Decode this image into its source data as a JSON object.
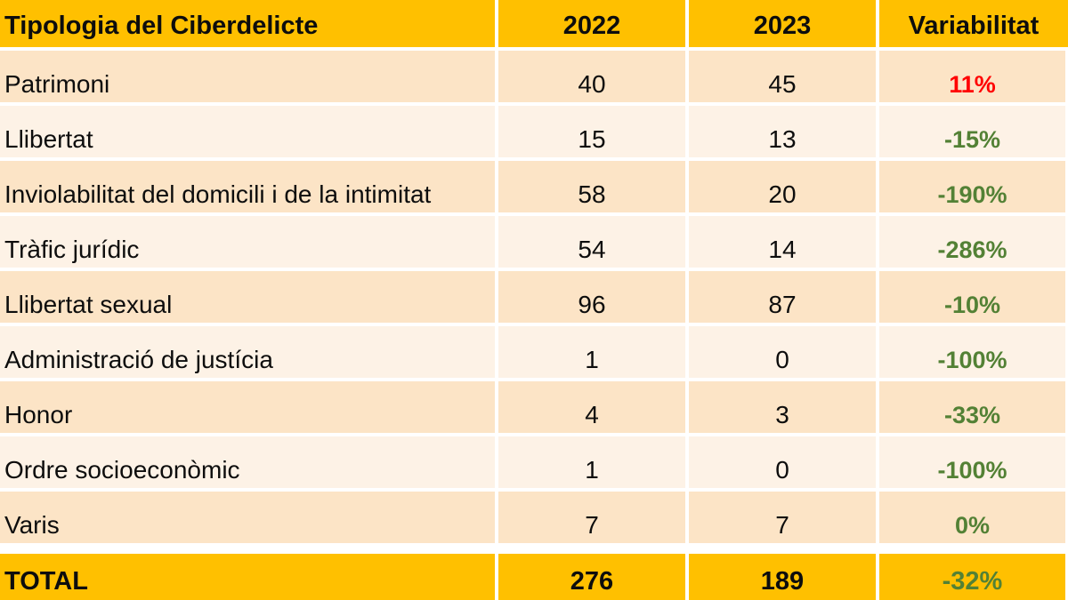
{
  "colors": {
    "header_bg": "#FFC000",
    "row_dark": "#FCE4C6",
    "row_light": "#FDF2E6",
    "positive": "#FF0000",
    "negative": "#538135",
    "text": "#0d0d0d"
  },
  "table": {
    "columns": {
      "typology": "Tipologia del Ciberdelicte",
      "y2022": "2022",
      "y2023": "2023",
      "variability": "Variabilitat"
    },
    "rows": [
      {
        "label": "Patrimoni",
        "y2022": "40",
        "y2023": "45",
        "variability": "11%",
        "trend": "up"
      },
      {
        "label": "Llibertat",
        "y2022": "15",
        "y2023": "13",
        "variability": "-15%",
        "trend": "down"
      },
      {
        "label": "Inviolabilitat del domicili i de la intimitat",
        "y2022": "58",
        "y2023": "20",
        "variability": "-190%",
        "trend": "down"
      },
      {
        "label": "Tràfic jurídic",
        "y2022": "54",
        "y2023": "14",
        "variability": "-286%",
        "trend": "down"
      },
      {
        "label": "Llibertat sexual",
        "y2022": "96",
        "y2023": "87",
        "variability": "-10%",
        "trend": "down"
      },
      {
        "label": "Administració de justícia",
        "y2022": "1",
        "y2023": "0",
        "variability": "-100%",
        "trend": "down"
      },
      {
        "label": "Honor",
        "y2022": "4",
        "y2023": "3",
        "variability": "-33%",
        "trend": "down"
      },
      {
        "label": "Ordre socioeconòmic",
        "y2022": "1",
        "y2023": "0",
        "variability": "-100%",
        "trend": "down"
      },
      {
        "label": "Varis",
        "y2022": "7",
        "y2023": "7",
        "variability": "0%",
        "trend": "down"
      }
    ],
    "total": {
      "label": "TOTAL",
      "y2022": "276",
      "y2023": "189",
      "variability": "-32%",
      "trend": "down"
    }
  },
  "chart_data": {
    "type": "table",
    "title": "Tipologia del Ciberdelicte",
    "columns": [
      "Tipologia del Ciberdelicte",
      "2022",
      "2023",
      "Variabilitat"
    ],
    "categories": [
      "Patrimoni",
      "Llibertat",
      "Inviolabilitat del domicili i de la intimitat",
      "Tràfic jurídic",
      "Llibertat sexual",
      "Administració de justícia",
      "Honor",
      "Ordre socioeconòmic",
      "Varis"
    ],
    "series": [
      {
        "name": "2022",
        "values": [
          40,
          15,
          58,
          54,
          96,
          1,
          4,
          1,
          7
        ]
      },
      {
        "name": "2023",
        "values": [
          45,
          13,
          20,
          14,
          87,
          0,
          3,
          0,
          7
        ]
      },
      {
        "name": "Variabilitat",
        "values": [
          "11%",
          "-15%",
          "-190%",
          "-286%",
          "-10%",
          "-100%",
          "-33%",
          "-100%",
          "0%"
        ]
      }
    ],
    "totals": {
      "2022": 276,
      "2023": 189,
      "Variabilitat": "-32%"
    },
    "notes": "Positive variability shown in red, negative/zero in green; header and total rows on gold background"
  }
}
